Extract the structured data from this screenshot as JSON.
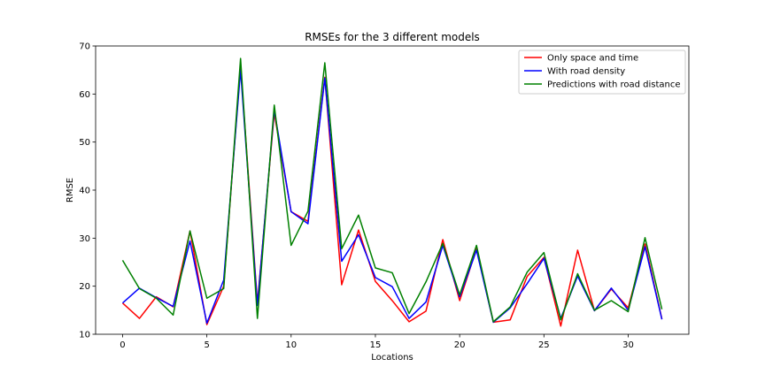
{
  "chart_data": {
    "type": "line",
    "title": "RMSEs for the 3 different models",
    "xlabel": "Locations",
    "ylabel": "RMSE",
    "xlim": [
      -1.6,
      33.6
    ],
    "ylim": [
      10,
      70
    ],
    "xticks": [
      0,
      5,
      10,
      15,
      20,
      25,
      30
    ],
    "yticks": [
      10,
      20,
      30,
      40,
      50,
      60,
      70
    ],
    "grid": false,
    "legend_position": "top-right",
    "x": [
      0,
      1,
      2,
      3,
      4,
      5,
      6,
      7,
      8,
      9,
      10,
      11,
      12,
      13,
      14,
      15,
      16,
      17,
      18,
      19,
      20,
      21,
      22,
      23,
      24,
      25,
      26,
      27,
      28,
      29,
      30,
      31,
      32
    ],
    "series": [
      {
        "name": "Only space and time",
        "color": "#ff0000",
        "values": [
          16.5,
          13.3,
          17.8,
          15.7,
          31.5,
          12.0,
          20.0,
          66.0,
          16.5,
          56.0,
          35.5,
          33.5,
          63.5,
          20.3,
          31.7,
          21.0,
          17.0,
          12.6,
          14.8,
          29.7,
          17.0,
          27.8,
          12.5,
          13.0,
          22.0,
          26.0,
          11.7,
          27.5,
          14.9,
          19.4,
          15.5,
          28.8,
          13.2
        ]
      },
      {
        "name": "With road density",
        "color": "#0000ff",
        "values": [
          16.5,
          19.6,
          17.6,
          15.8,
          29.4,
          12.3,
          21.3,
          65.0,
          16.0,
          56.7,
          35.5,
          33.0,
          63.3,
          25.2,
          30.7,
          21.8,
          19.9,
          13.3,
          16.7,
          28.5,
          17.8,
          27.5,
          12.5,
          15.5,
          20.5,
          25.8,
          13.3,
          22.1,
          14.9,
          19.6,
          15.0,
          28.2,
          13.1
        ]
      },
      {
        "name": "Predictions with road distance",
        "color": "#008000",
        "values": [
          25.4,
          19.5,
          17.5,
          14.0,
          31.5,
          17.5,
          19.5,
          67.4,
          13.3,
          57.7,
          28.5,
          35.6,
          66.5,
          27.8,
          34.8,
          23.8,
          22.8,
          14.3,
          20.9,
          28.9,
          18.2,
          28.5,
          12.6,
          15.7,
          22.9,
          27.0,
          13.0,
          22.6,
          15.0,
          17.0,
          14.7,
          30.1,
          15.2
        ]
      }
    ]
  }
}
